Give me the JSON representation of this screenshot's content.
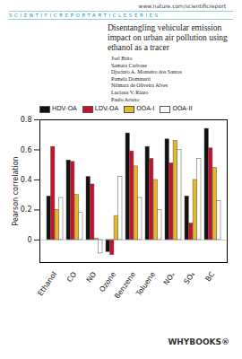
{
  "header": {
    "url": "www.nature.com/scientificreport",
    "series": "SCIENTIFICREPORTARTICLESERIES"
  },
  "title": "Disentangling vehicular emission impact on urban air pollution using ethanol as a tracer",
  "authors": [
    "Joel Brito",
    "Samara Carbone",
    "Djacinto A. Monteiro dos Santos",
    "Pamela Dominutti",
    "Nilmara de Oliveira Alves",
    "Luciana V. Rizzo",
    "Paulo Artaxo"
  ],
  "publisher": "WHYBOOKS®",
  "chart_data": {
    "type": "bar",
    "categories": [
      "Ethanol",
      "CO",
      "NO",
      "Ozone",
      "Benzene",
      "Toluene",
      "NOₓ",
      "SO₄",
      "BC"
    ],
    "series": [
      {
        "name": "HDV-OA",
        "color": "#111111",
        "values": [
          0.29,
          0.53,
          0.42,
          -0.08,
          0.71,
          0.62,
          0.67,
          0.29,
          0.74
        ]
      },
      {
        "name": "LDV-OA",
        "color": "#c8102e",
        "values": [
          0.62,
          0.52,
          0.37,
          -0.1,
          0.59,
          0.54,
          0.51,
          0.11,
          0.61
        ]
      },
      {
        "name": "OOA-I",
        "color": "#e8b820",
        "values": [
          0.2,
          0.3,
          0.01,
          0.16,
          0.49,
          0.4,
          0.66,
          0.4,
          0.48
        ]
      },
      {
        "name": "OOA-II",
        "color": "#ffffff",
        "values": [
          0.28,
          0.18,
          -0.09,
          0.42,
          0.28,
          0.2,
          0.6,
          0.54,
          0.26
        ]
      }
    ],
    "y_label": "Pearson correlation",
    "ylim": [
      -0.15,
      0.8
    ],
    "yticks": [
      0,
      0.2,
      0.4,
      0.6,
      0.8
    ],
    "legend": "top"
  }
}
